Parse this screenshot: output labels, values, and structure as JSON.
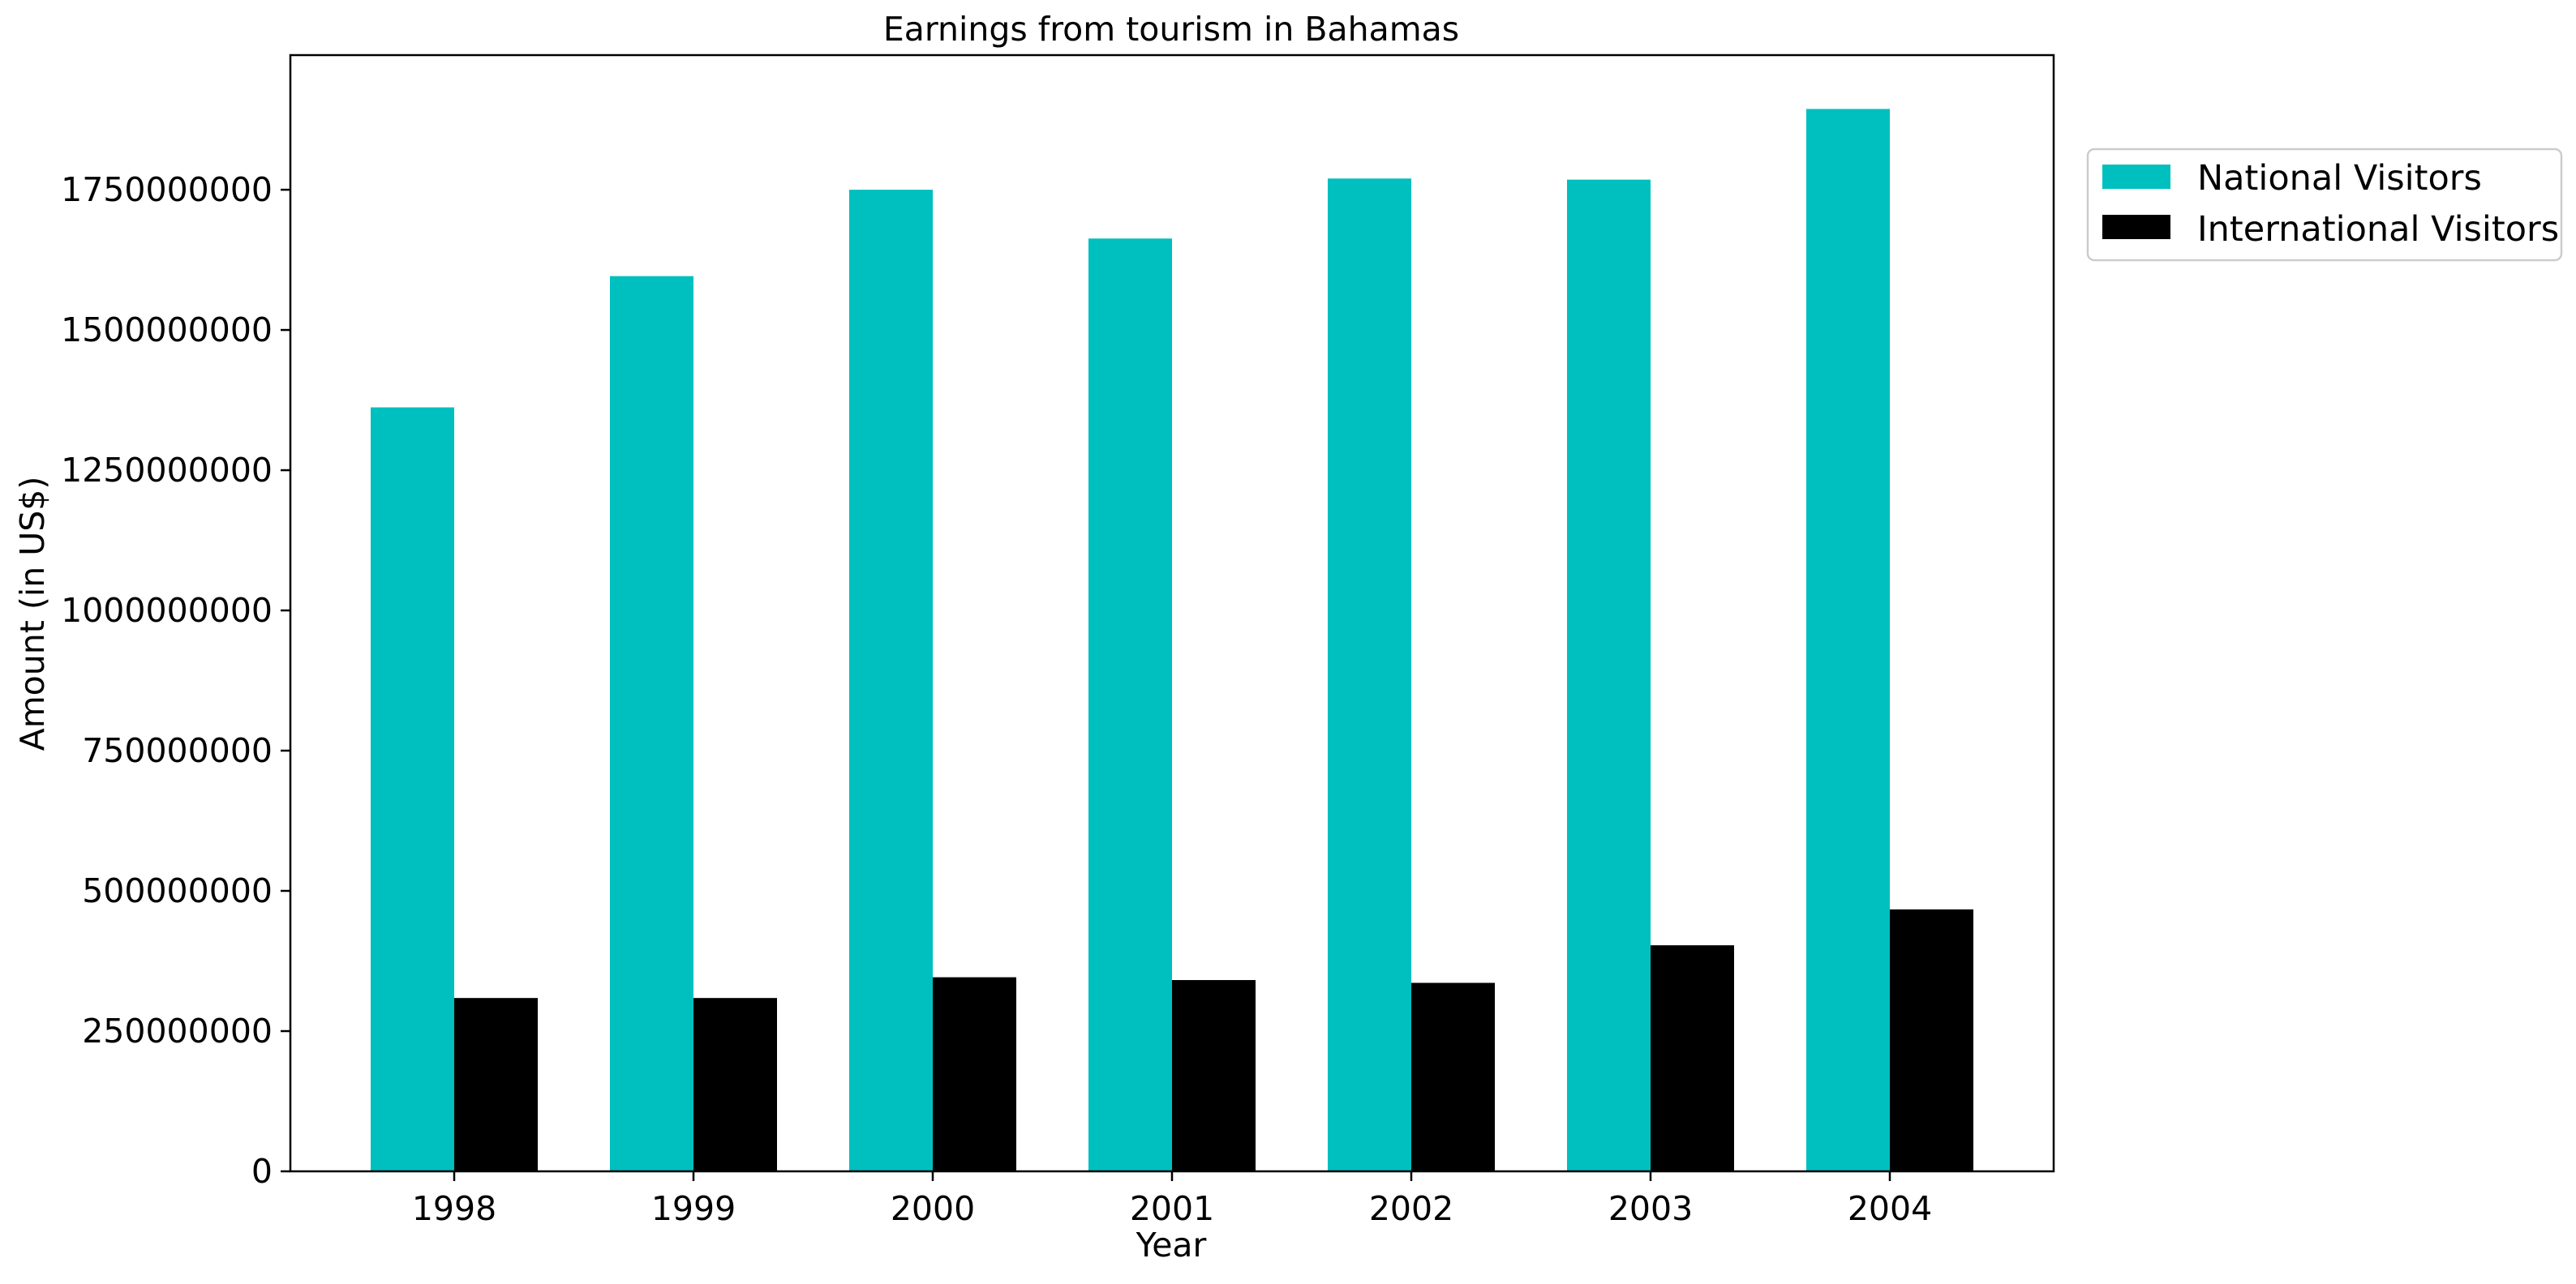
{
  "chart_data": {
    "type": "bar",
    "title": "Earnings from tourism in Bahamas",
    "xlabel": "Year",
    "ylabel": "Amount (in US$)",
    "categories": [
      "1998",
      "1999",
      "2000",
      "2001",
      "2002",
      "2003",
      "2004"
    ],
    "series": [
      {
        "name": "National Visitors",
        "color": "#00bfbf",
        "values": [
          1362000000,
          1596000000,
          1750000000,
          1663000000,
          1770000000,
          1768000000,
          1894000000
        ]
      },
      {
        "name": "International Visitors",
        "color": "#000000",
        "values": [
          309000000,
          309000000,
          346000000,
          341000000,
          336000000,
          403000000,
          467000000
        ]
      }
    ],
    "ylim": [
      0,
      1990000000
    ],
    "yticks": [
      0,
      250000000,
      500000000,
      750000000,
      1000000000,
      1250000000,
      1500000000,
      1750000000
    ],
    "ytick_labels": [
      "0",
      "250000000",
      "500000000",
      "750000000",
      "1000000000",
      "1250000000",
      "1500000000",
      "1750000000"
    ],
    "grid": false,
    "legend_position": "outside-top-right"
  }
}
